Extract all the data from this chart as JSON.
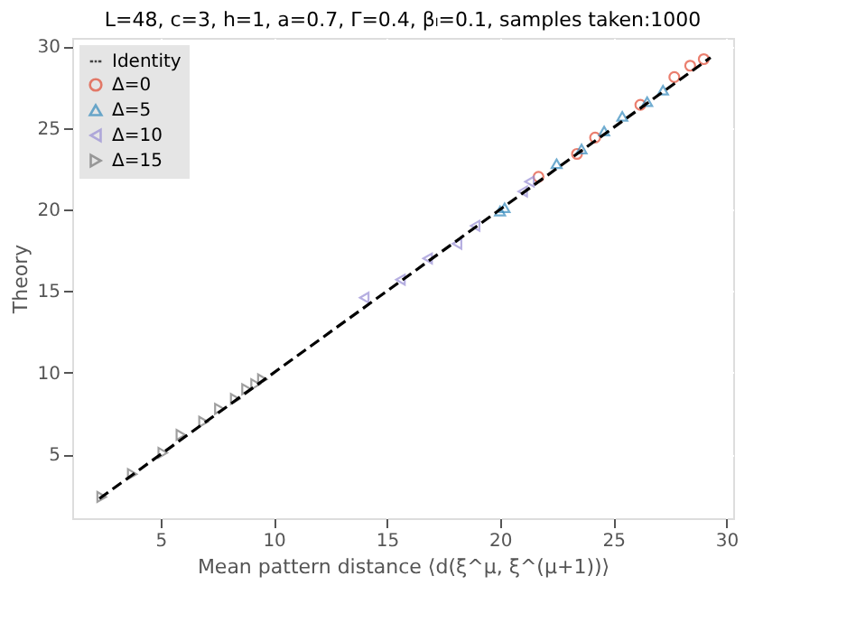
{
  "chart_data": {
    "type": "scatter",
    "title": "L=48, c=3, h=1, a=0.7, Γ=0.4, βₗ=0.1, samples taken:1000",
    "xlabel": "Mean pattern distance ⟨d(ξ^μ, ξ^(μ+1))⟩",
    "ylabel": "Theory",
    "xlim": [
      1.1,
      30.3
    ],
    "ylim": [
      1.1,
      30.5
    ],
    "xticks": [
      5,
      10,
      15,
      20,
      25,
      30
    ],
    "yticks": [
      5,
      10,
      15,
      20,
      25,
      30
    ],
    "grid": true,
    "legend": "top left",
    "series": [
      {
        "name": "Identity",
        "type": "line",
        "color": "#000000",
        "line_style": "dashed",
        "x": [
          2.3,
          29.3
        ],
        "values": [
          2.3,
          29.3
        ]
      },
      {
        "name": "Δ=0",
        "color": "#e24a33",
        "marker": "circle",
        "x": [
          29.0,
          28.4,
          27.7,
          26.2,
          24.2,
          23.4,
          21.7
        ],
        "values": [
          29.2,
          28.8,
          28.1,
          26.4,
          24.4,
          23.4,
          22.0
        ]
      },
      {
        "name": "Δ=5",
        "color": "#348abd",
        "marker": "triangle",
        "x": [
          27.2,
          26.5,
          25.4,
          24.6,
          23.6,
          22.5,
          20.0,
          20.2
        ],
        "values": [
          27.3,
          26.6,
          25.7,
          24.8,
          23.7,
          22.8,
          19.9,
          20.1
        ]
      },
      {
        "name": "Δ=10",
        "color": "#988ed5",
        "marker": "triangle-left",
        "x": [
          21.3,
          21.0,
          18.9,
          18.1,
          16.8,
          15.6,
          14.0
        ],
        "values": [
          21.7,
          21.1,
          19.0,
          17.9,
          17.0,
          15.7,
          14.6
        ]
      },
      {
        "name": "Δ=15",
        "color": "#777777",
        "marker": "triangle-right",
        "x": [
          2.4,
          3.75,
          5.1,
          5.9,
          6.9,
          7.6,
          8.3,
          8.8,
          9.2,
          9.5
        ],
        "values": [
          2.4,
          3.8,
          5.1,
          6.2,
          7.0,
          7.8,
          8.4,
          9.0,
          9.3,
          9.6
        ]
      }
    ]
  }
}
